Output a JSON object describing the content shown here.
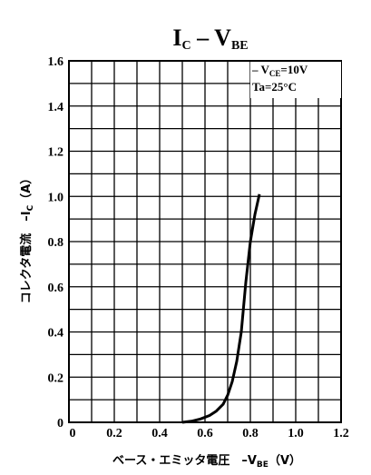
{
  "title": {
    "main": "I",
    "sub": "C",
    "dash": " – V",
    "sub2": "BE"
  },
  "annotation": {
    "line1_prefix": "– V",
    "line1_sub": "CE",
    "line1_suffix": "=10V",
    "line2": "Ta=25°C"
  },
  "ylabel": {
    "text": "コレクタ電流　–I",
    "sub": "C",
    "unit": "（A）"
  },
  "xlabel": {
    "text": "ベース・エミッタ電圧　–V",
    "sub": "BE",
    "unit": "（V）"
  },
  "chart_data": {
    "type": "line",
    "title": "IC – VBE",
    "xlabel": "ベース・エミッタ電圧 –VBE （V）",
    "ylabel": "コレクタ電流 –IC （A）",
    "xlim": [
      0,
      1.2
    ],
    "ylim": [
      0,
      1.6
    ],
    "grid": true,
    "x_ticks": [
      "0",
      "0.2",
      "0.4",
      "0.6",
      "0.8",
      "1.0",
      "1.2"
    ],
    "y_ticks": [
      "0",
      "0.2",
      "0.4",
      "0.6",
      "0.8",
      "1.0",
      "1.2",
      "1.4",
      "1.6"
    ],
    "series": [
      {
        "x": [
          0.5,
          0.54,
          0.58,
          0.62,
          0.65,
          0.68,
          0.7,
          0.72,
          0.74,
          0.76,
          0.78,
          0.8,
          0.82,
          0.84
        ],
        "y": [
          0.0,
          0.005,
          0.015,
          0.03,
          0.05,
          0.08,
          0.12,
          0.18,
          0.27,
          0.4,
          0.62,
          0.8,
          0.92,
          1.01
        ]
      }
    ]
  }
}
